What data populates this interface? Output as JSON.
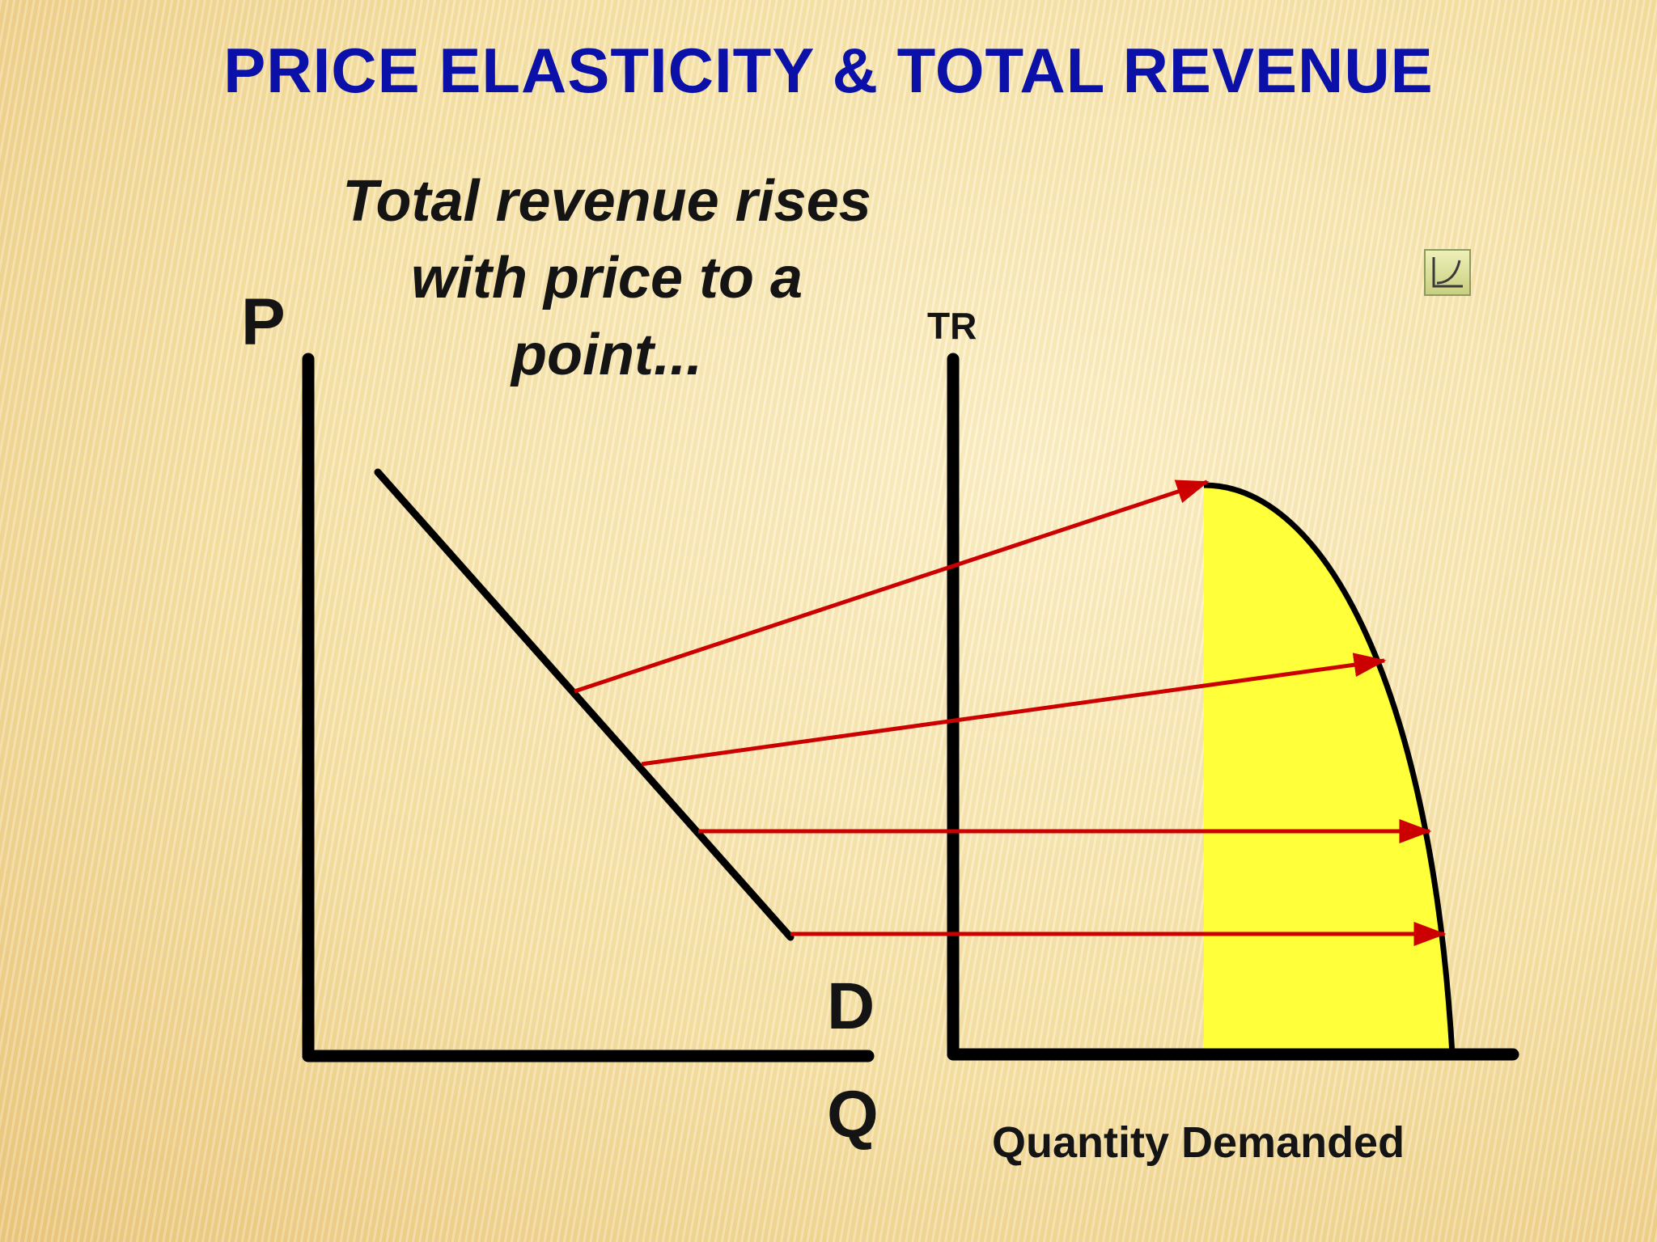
{
  "slide": {
    "title": "PRICE ELASTICITY & TOTAL REVENUE"
  },
  "caption": {
    "lines": [
      "Total revenue rises",
      "with price to a",
      "point..."
    ]
  },
  "left_graph": {
    "y_label": "P",
    "x_label": "Q",
    "curve_label": "D"
  },
  "right_graph": {
    "y_label": "TR",
    "x_label": "Quantity Demanded"
  },
  "icons": {
    "corner": "chart-curve-icon"
  },
  "colors": {
    "title": "#0a10a8",
    "arrows": "#cc0000",
    "shaded_area": "#ffff3a",
    "axes": "#000000"
  }
}
